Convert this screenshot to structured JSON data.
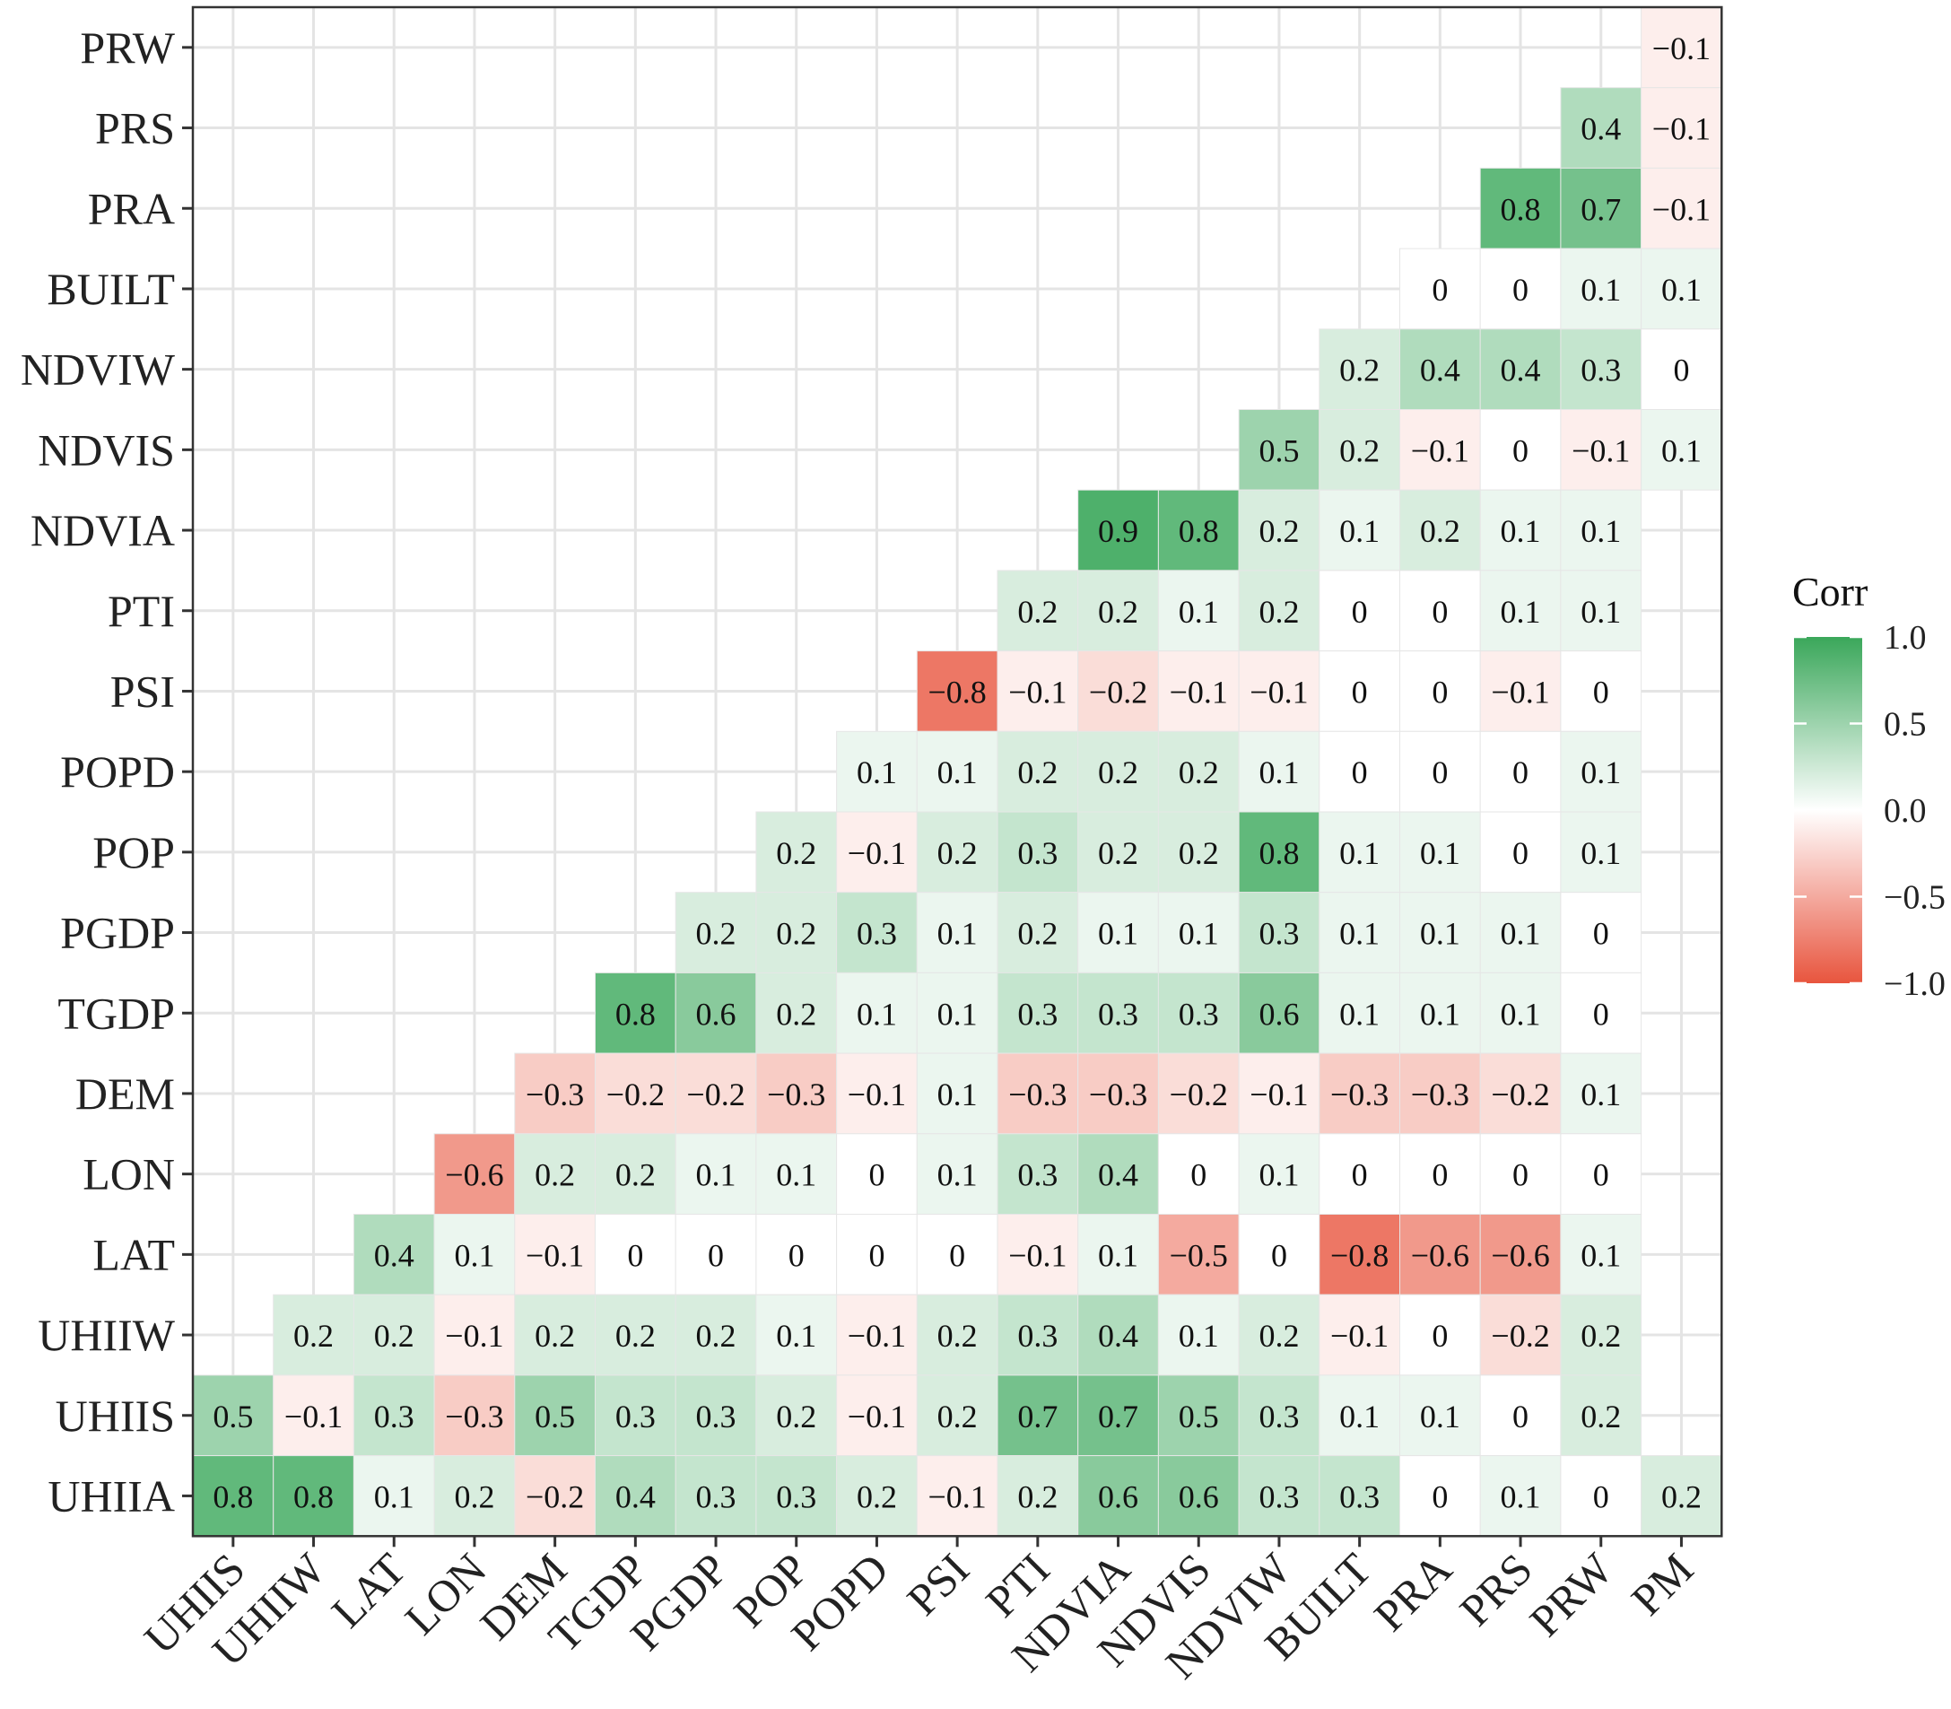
{
  "chart_data": {
    "type": "heatmap",
    "title": "",
    "xlabel": "",
    "ylabel": "",
    "x_categories": [
      "UHIIS",
      "UHIIW",
      "LAT",
      "LON",
      "DEM",
      "TGDP",
      "PGDP",
      "POP",
      "POPD",
      "PSI",
      "PTI",
      "NDVIA",
      "NDVIS",
      "NDVIW",
      "BUILT",
      "PRA",
      "PRS",
      "PRW",
      "PM"
    ],
    "y_categories": [
      "PRW",
      "PRS",
      "PRA",
      "BUILT",
      "NDVIW",
      "NDVIS",
      "NDVIA",
      "PTI",
      "PSI",
      "POPD",
      "POP",
      "PGDP",
      "TGDP",
      "DEM",
      "LON",
      "LAT",
      "UHIIW",
      "UHIIS",
      "UHIIA"
    ],
    "values": [
      [
        null,
        null,
        null,
        null,
        null,
        null,
        null,
        null,
        null,
        null,
        null,
        null,
        null,
        null,
        null,
        null,
        null,
        null,
        -0.1
      ],
      [
        null,
        null,
        null,
        null,
        null,
        null,
        null,
        null,
        null,
        null,
        null,
        null,
        null,
        null,
        null,
        null,
        null,
        0.4,
        -0.1
      ],
      [
        null,
        null,
        null,
        null,
        null,
        null,
        null,
        null,
        null,
        null,
        null,
        null,
        null,
        null,
        null,
        null,
        0.8,
        0.7,
        -0.1
      ],
      [
        null,
        null,
        null,
        null,
        null,
        null,
        null,
        null,
        null,
        null,
        null,
        null,
        null,
        null,
        null,
        0,
        0,
        0.1,
        0.1
      ],
      [
        null,
        null,
        null,
        null,
        null,
        null,
        null,
        null,
        null,
        null,
        null,
        null,
        null,
        null,
        0.2,
        0.4,
        0.4,
        0.3,
        0
      ],
      [
        null,
        null,
        null,
        null,
        null,
        null,
        null,
        null,
        null,
        null,
        null,
        null,
        null,
        0.5,
        0.2,
        -0.1,
        0,
        -0.1,
        0.1
      ],
      [
        null,
        null,
        null,
        null,
        null,
        null,
        null,
        null,
        null,
        null,
        null,
        0.9,
        0.8,
        0.2,
        0.1,
        0.2,
        0.1,
        0.1,
        null
      ],
      [
        null,
        null,
        null,
        null,
        null,
        null,
        null,
        null,
        null,
        null,
        0.2,
        0.2,
        0.1,
        0.2,
        0,
        0,
        0.1,
        0.1,
        null
      ],
      [
        null,
        null,
        null,
        null,
        null,
        null,
        null,
        null,
        null,
        -0.8,
        -0.1,
        -0.2,
        -0.1,
        -0.1,
        0,
        0,
        -0.1,
        0,
        null
      ],
      [
        null,
        null,
        null,
        null,
        null,
        null,
        null,
        null,
        0.1,
        0.1,
        0.2,
        0.2,
        0.2,
        0.1,
        0,
        0,
        0,
        0.1,
        null
      ],
      [
        null,
        null,
        null,
        null,
        null,
        null,
        null,
        0.2,
        -0.1,
        0.2,
        0.3,
        0.2,
        0.2,
        0.8,
        0.1,
        0.1,
        0,
        0.1,
        null
      ],
      [
        null,
        null,
        null,
        null,
        null,
        null,
        0.2,
        0.2,
        0.3,
        0.1,
        0.2,
        0.1,
        0.1,
        0.3,
        0.1,
        0.1,
        0.1,
        0,
        null
      ],
      [
        null,
        null,
        null,
        null,
        null,
        0.8,
        0.6,
        0.2,
        0.1,
        0.1,
        0.3,
        0.3,
        0.3,
        0.6,
        0.1,
        0.1,
        0.1,
        0,
        null
      ],
      [
        null,
        null,
        null,
        null,
        -0.3,
        -0.2,
        -0.2,
        -0.3,
        -0.1,
        0.1,
        -0.3,
        -0.3,
        -0.2,
        -0.1,
        -0.3,
        -0.3,
        -0.2,
        0.1,
        null
      ],
      [
        null,
        null,
        null,
        -0.6,
        0.2,
        0.2,
        0.1,
        0.1,
        0,
        0.1,
        0.3,
        0.4,
        0,
        0.1,
        0,
        0,
        0,
        0,
        null
      ],
      [
        null,
        null,
        0.4,
        0.1,
        -0.1,
        0,
        0,
        0,
        0,
        0,
        -0.1,
        0.1,
        -0.5,
        0,
        -0.8,
        -0.6,
        -0.6,
        0.1,
        null
      ],
      [
        null,
        0.2,
        0.2,
        -0.1,
        0.2,
        0.2,
        0.2,
        0.1,
        -0.1,
        0.2,
        0.3,
        0.4,
        0.1,
        0.2,
        -0.1,
        0,
        -0.2,
        0.2,
        null
      ],
      [
        0.5,
        -0.1,
        0.3,
        -0.3,
        0.5,
        0.3,
        0.3,
        0.2,
        -0.1,
        0.2,
        0.7,
        0.7,
        0.5,
        0.3,
        0.1,
        0.1,
        0,
        0.2,
        null
      ],
      [
        0.8,
        0.8,
        0.1,
        0.2,
        -0.2,
        0.4,
        0.3,
        0.3,
        0.2,
        -0.1,
        0.2,
        0.6,
        0.6,
        0.3,
        0.3,
        0,
        0.1,
        0,
        0.2
      ]
    ],
    "legend": {
      "title": "Corr",
      "ticks": [
        "1.0",
        "0.5",
        "0.0",
        "−0.5",
        "−1.0"
      ],
      "range": [
        -1,
        1
      ],
      "placement": "right"
    },
    "colors": {
      "low": "#e8553e",
      "mid": "#ffffff",
      "high": "#3aa75a"
    },
    "grid": true
  }
}
